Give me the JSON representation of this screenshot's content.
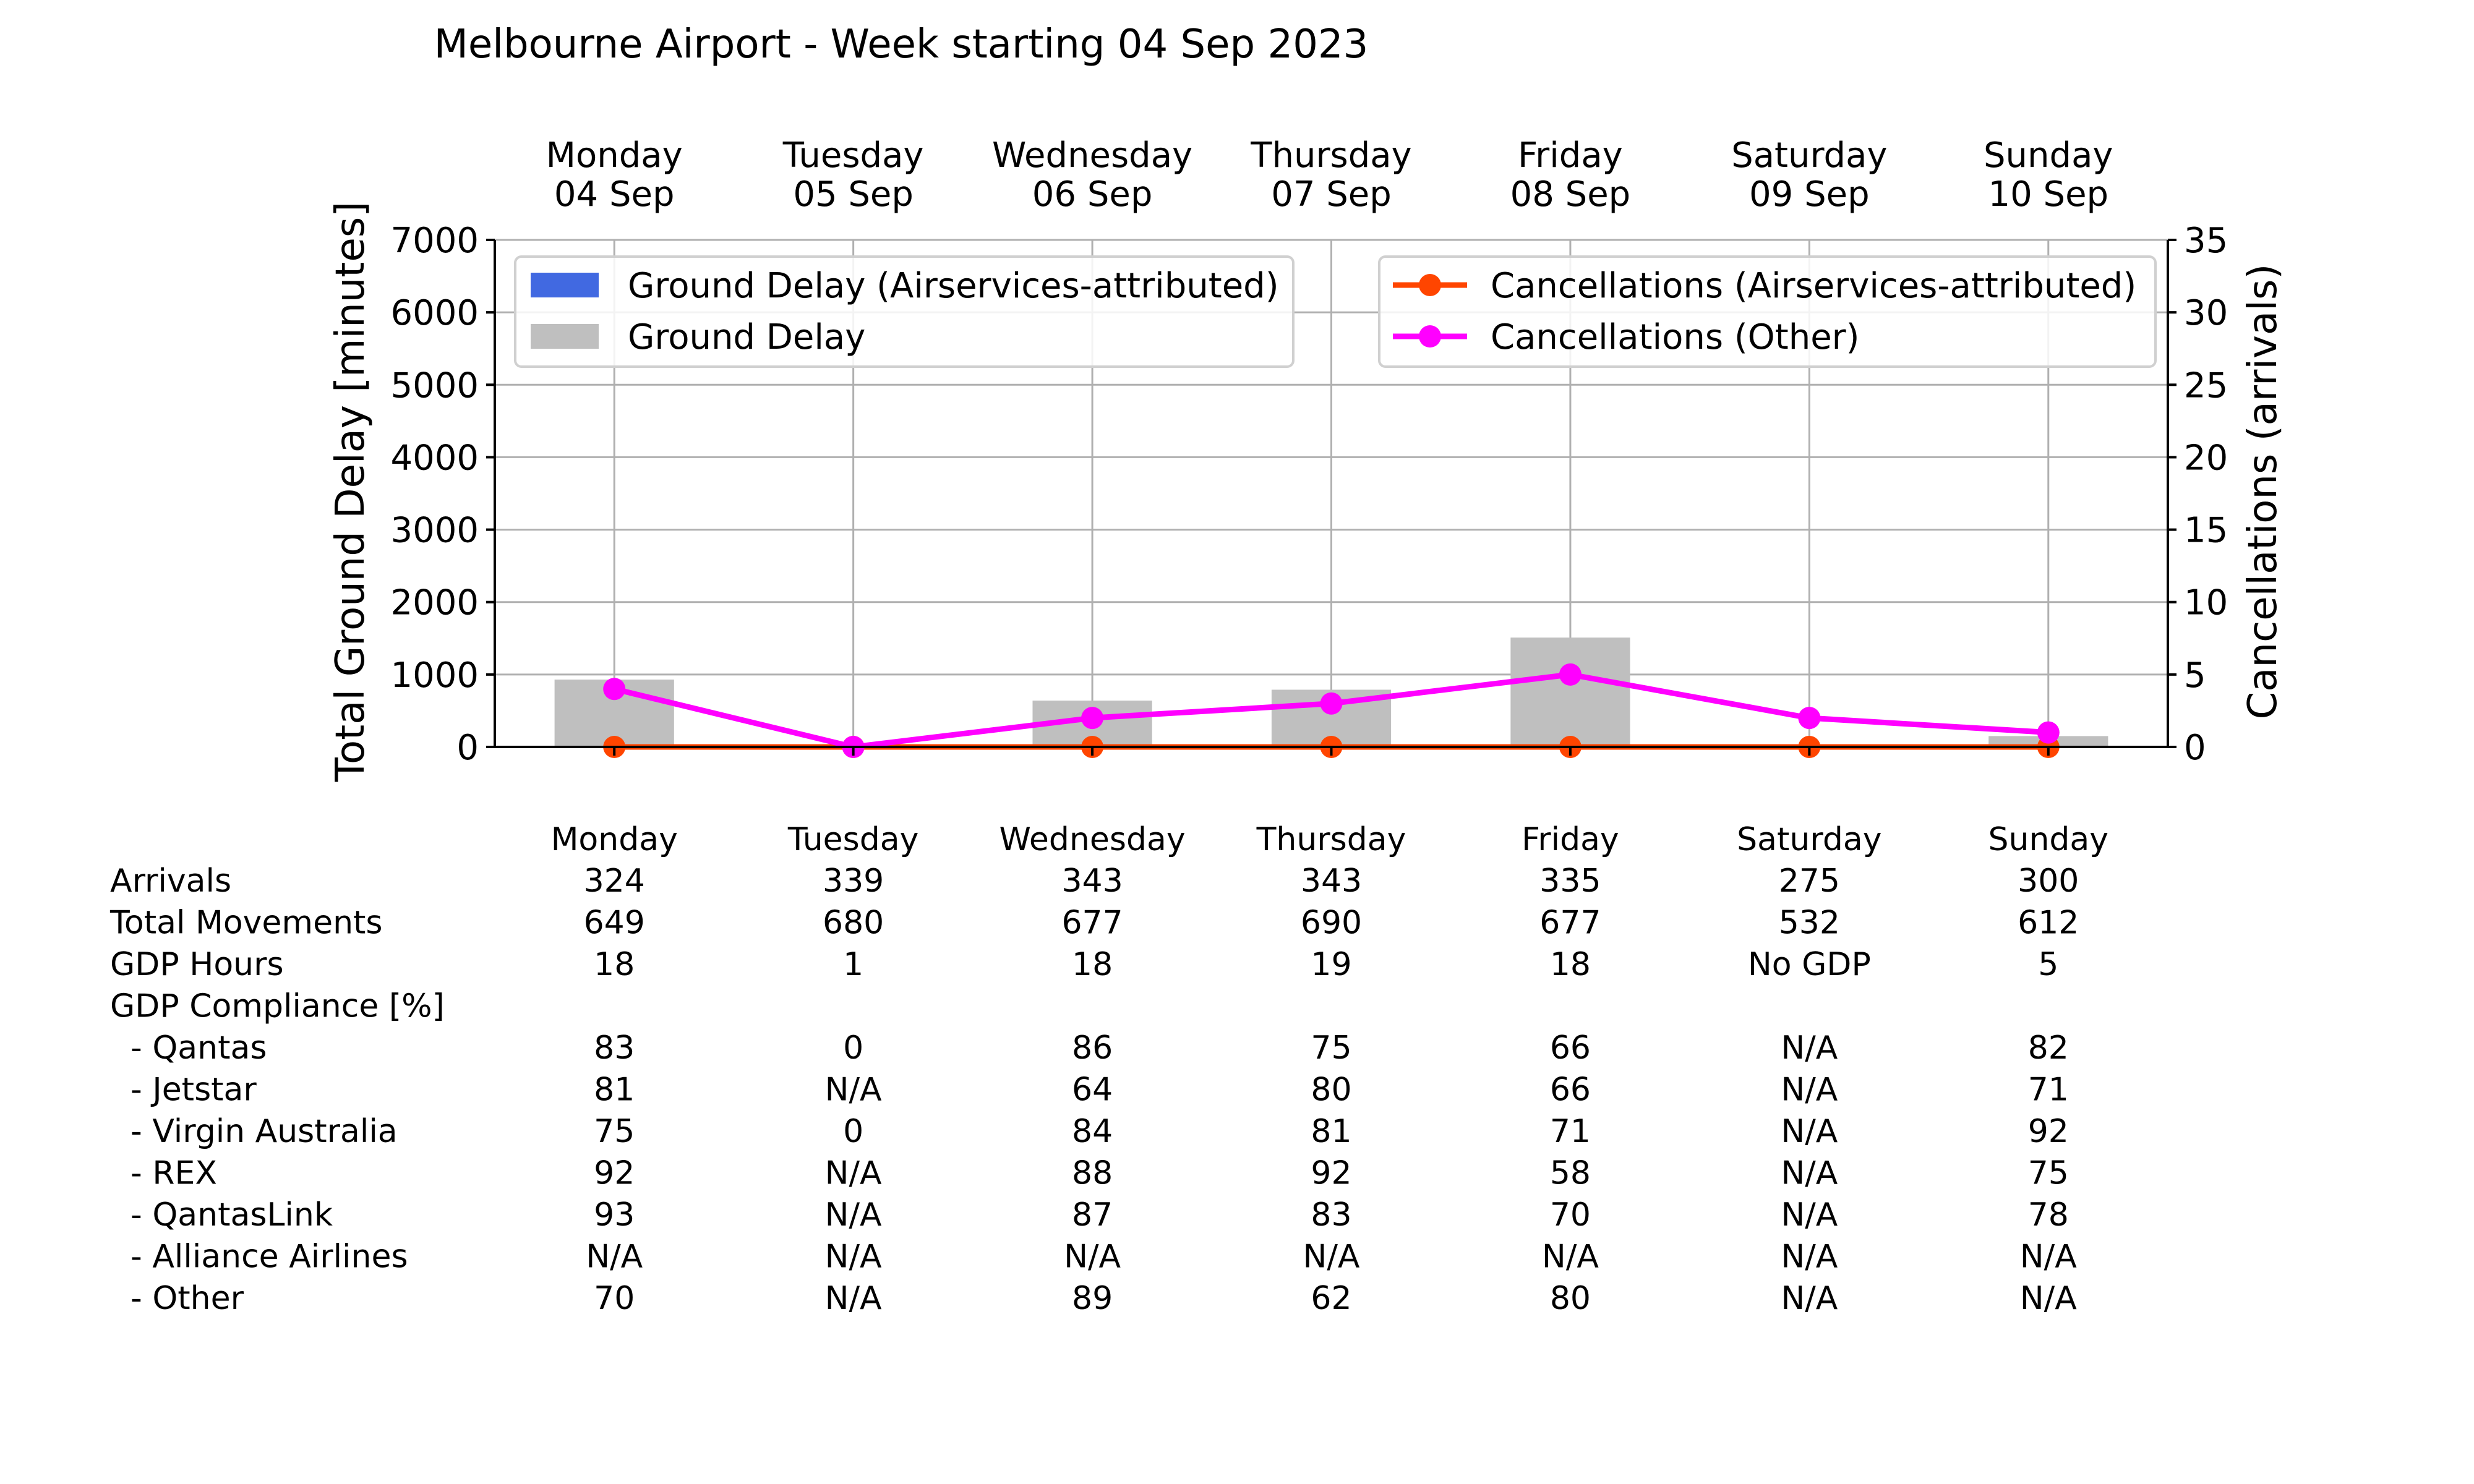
{
  "chart_data": {
    "type": "bar",
    "title": "Melbourne Airport - Week starting 04 Sep 2023",
    "days": [
      {
        "day": "Monday",
        "date": "04 Sep"
      },
      {
        "day": "Tuesday",
        "date": "05 Sep"
      },
      {
        "day": "Wednesday",
        "date": "06 Sep"
      },
      {
        "day": "Thursday",
        "date": "07 Sep"
      },
      {
        "day": "Friday",
        "date": "08 Sep"
      },
      {
        "day": "Saturday",
        "date": "09 Sep"
      },
      {
        "day": "Sunday",
        "date": "10 Sep"
      }
    ],
    "ylabel_left": "Total Ground Delay [minutes]",
    "ylabel_right": "Cancellations (arrivals)",
    "ylim_left": [
      0,
      7000
    ],
    "yticks_left": [
      0,
      1000,
      2000,
      3000,
      4000,
      5000,
      6000,
      7000
    ],
    "ylim_right": [
      0,
      35
    ],
    "yticks_right": [
      0,
      5,
      10,
      15,
      20,
      25,
      30,
      35
    ],
    "grid": true,
    "bar_series": [
      {
        "name": "Ground Delay (Airservices-attributed)",
        "color": "#4169e1",
        "values": [
          0,
          0,
          0,
          0,
          0,
          0,
          0
        ]
      },
      {
        "name": "Ground Delay",
        "color": "#bfbfbf",
        "values": [
          930,
          0,
          640,
          790,
          1510,
          0,
          150
        ]
      }
    ],
    "line_series": [
      {
        "name": "Cancellations (Airservices-attributed)",
        "color": "#ff4500",
        "values": [
          0,
          0,
          0,
          0,
          0,
          0,
          0
        ]
      },
      {
        "name": "Cancellations (Other)",
        "color": "#ff00ff",
        "values": [
          4,
          0,
          2,
          3,
          5,
          2,
          1
        ]
      }
    ],
    "legend_left_placement": "top-left",
    "legend_right_placement": "top-right",
    "table": {
      "columns": [
        "Monday",
        "Tuesday",
        "Wednesday",
        "Thursday",
        "Friday",
        "Saturday",
        "Sunday"
      ],
      "rows": [
        {
          "label": "Arrivals",
          "values": [
            "324",
            "339",
            "343",
            "343",
            "335",
            "275",
            "300"
          ]
        },
        {
          "label": "Total Movements",
          "values": [
            "649",
            "680",
            "677",
            "690",
            "677",
            "532",
            "612"
          ]
        },
        {
          "label": "GDP Hours",
          "values": [
            "18",
            "1",
            "18",
            "19",
            "18",
            "No GDP",
            "5"
          ]
        },
        {
          "label": "GDP Compliance [%]",
          "values": [
            "",
            "",
            "",
            "",
            "",
            "",
            ""
          ]
        },
        {
          "label": "  - Qantas",
          "values": [
            "83",
            "0",
            "86",
            "75",
            "66",
            "N/A",
            "82"
          ]
        },
        {
          "label": "  - Jetstar",
          "values": [
            "81",
            "N/A",
            "64",
            "80",
            "66",
            "N/A",
            "71"
          ]
        },
        {
          "label": "  - Virgin Australia",
          "values": [
            "75",
            "0",
            "84",
            "81",
            "71",
            "N/A",
            "92"
          ]
        },
        {
          "label": "  - REX",
          "values": [
            "92",
            "N/A",
            "88",
            "92",
            "58",
            "N/A",
            "75"
          ]
        },
        {
          "label": "  - QantasLink",
          "values": [
            "93",
            "N/A",
            "87",
            "83",
            "70",
            "N/A",
            "78"
          ]
        },
        {
          "label": "  - Alliance Airlines",
          "values": [
            "N/A",
            "N/A",
            "N/A",
            "N/A",
            "N/A",
            "N/A",
            "N/A"
          ]
        },
        {
          "label": "  - Other",
          "values": [
            "70",
            "N/A",
            "89",
            "62",
            "80",
            "N/A",
            "N/A"
          ]
        }
      ]
    }
  }
}
